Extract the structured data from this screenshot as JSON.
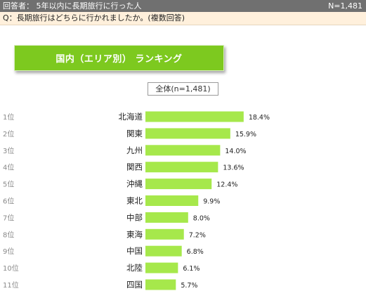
{
  "header": {
    "respondents": "回答者： 5年以内に長期旅行に行った人",
    "n_label": "N=1,481"
  },
  "question": "Q：長期旅行はどちらに行かれましたか。(複数回答)",
  "title": "国内（エリア別） ランキング",
  "subtitle": "全体(n=1,481)",
  "colors": {
    "bar": "#a6e84b",
    "banner": "#7dc91f",
    "header": "#707070",
    "question_bg": "#fff0dc"
  },
  "chart_data": {
    "type": "bar",
    "orientation": "horizontal",
    "title": "国内（エリア別） ランキング",
    "subtitle": "全体(n=1,481)",
    "ranks": [
      "1位",
      "2位",
      "3位",
      "4位",
      "5位",
      "6位",
      "7位",
      "8位",
      "9位",
      "10位",
      "11位"
    ],
    "categories": [
      "北海道",
      "関東",
      "九州",
      "関西",
      "沖縄",
      "東北",
      "中部",
      "東海",
      "中国",
      "北陸",
      "四国"
    ],
    "values": [
      18.4,
      15.9,
      14.0,
      13.6,
      12.4,
      9.9,
      8.0,
      7.2,
      6.8,
      6.1,
      5.7
    ],
    "value_labels": [
      "18.4%",
      "15.9%",
      "14.0%",
      "13.6%",
      "12.4%",
      "9.9%",
      "8.0%",
      "7.2%",
      "6.8%",
      "6.1%",
      "5.7%"
    ],
    "unit": "%",
    "grid": false
  }
}
